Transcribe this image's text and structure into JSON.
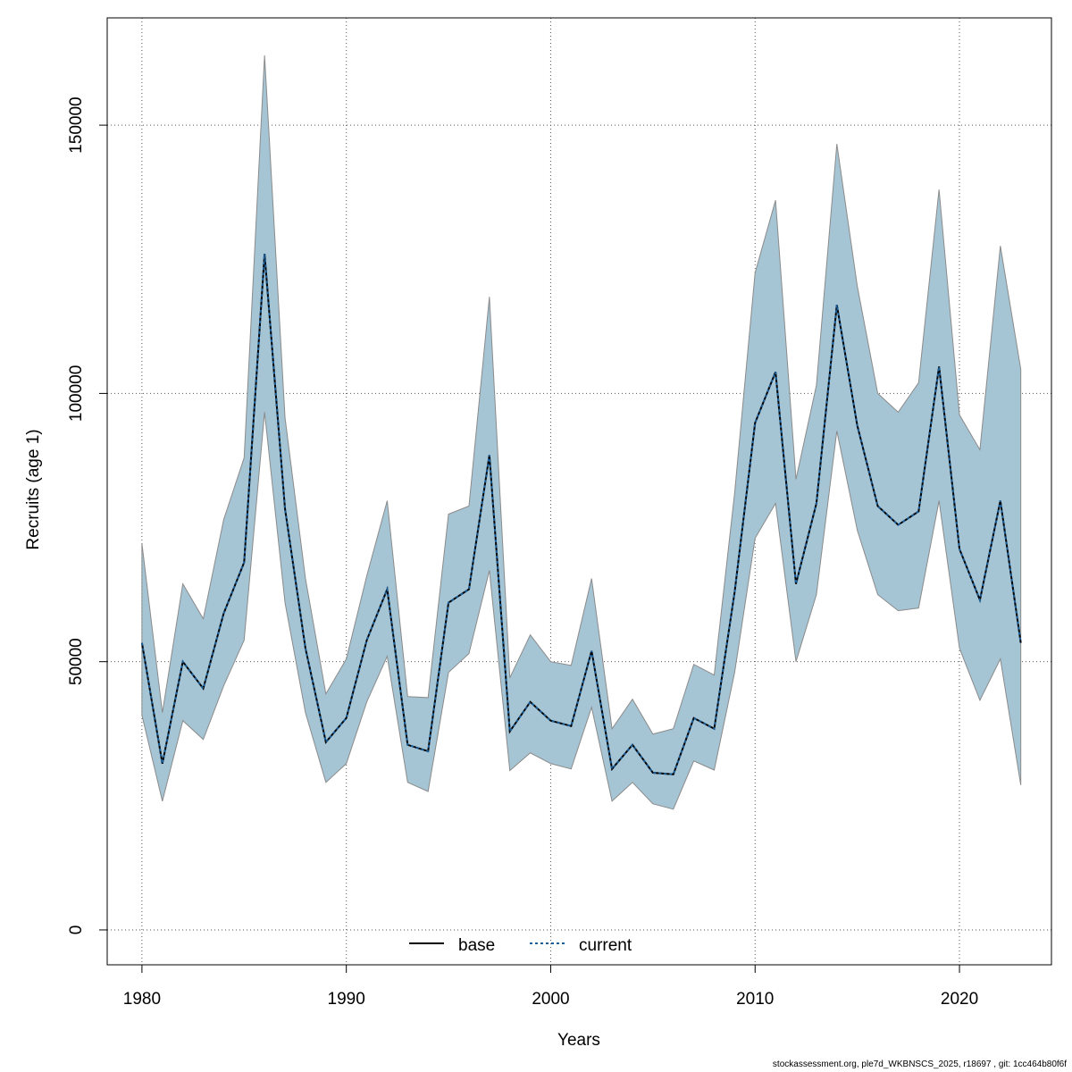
{
  "chart_data": {
    "type": "line",
    "title": "",
    "xlabel": "Years",
    "ylabel": "Recruits (age 1)",
    "xlim": [
      1978.3,
      2024.5
    ],
    "ylim": [
      -6500,
      170000
    ],
    "x_ticks": [
      1980,
      1990,
      2000,
      2010,
      2020
    ],
    "y_ticks": [
      0,
      50000,
      100000,
      150000
    ],
    "grid": true,
    "legend_position": "bottom-center",
    "colors": {
      "band": "#a5c4d4",
      "band_edge": "#8b8b8b",
      "base": "#000000",
      "current": "#1a5e9a"
    },
    "x": [
      1980,
      1981,
      1982,
      1983,
      1984,
      1985,
      1986,
      1987,
      1988,
      1989,
      1990,
      1991,
      1992,
      1993,
      1994,
      1995,
      1996,
      1997,
      1998,
      1999,
      2000,
      2001,
      2002,
      2003,
      2004,
      2005,
      2006,
      2007,
      2008,
      2009,
      2010,
      2011,
      2012,
      2013,
      2014,
      2015,
      2016,
      2017,
      2018,
      2019,
      2020,
      2021,
      2022,
      2023
    ],
    "band_upper": [
      72000,
      40500,
      64500,
      58000,
      76500,
      88000,
      163000,
      95500,
      65500,
      44000,
      50500,
      66000,
      80000,
      43500,
      43300,
      77500,
      79000,
      118000,
      47000,
      55000,
      50000,
      49300,
      65500,
      37500,
      43000,
      36500,
      37500,
      49500,
      47500,
      81500,
      122500,
      136000,
      84000,
      101500,
      146500,
      120000,
      100000,
      96500,
      102000,
      138000,
      96000,
      89500,
      127500,
      104500
    ],
    "band_lower": [
      40000,
      24000,
      39000,
      35500,
      45500,
      54000,
      96500,
      61000,
      40500,
      27500,
      31000,
      42500,
      51000,
      27500,
      25800,
      48000,
      51500,
      67000,
      29700,
      33000,
      31000,
      30000,
      41500,
      24000,
      27500,
      23500,
      22500,
      31500,
      29800,
      48000,
      73000,
      79500,
      50000,
      62500,
      93000,
      74500,
      62500,
      59500,
      60000,
      80000,
      52500,
      42800,
      50500,
      27000
    ],
    "series": [
      {
        "name": "base",
        "style": "solid",
        "values": [
          53500,
          31000,
          50000,
          45000,
          59000,
          68500,
          126000,
          78500,
          52500,
          35000,
          39500,
          54000,
          63500,
          34500,
          33300,
          61000,
          63500,
          88500,
          37000,
          42500,
          39000,
          38000,
          52000,
          30000,
          34500,
          29300,
          29000,
          39500,
          37500,
          63000,
          94500,
          104000,
          64500,
          79500,
          116500,
          94000,
          79000,
          75500,
          78000,
          105000,
          71000,
          61500,
          80000,
          53500
        ]
      },
      {
        "name": "current",
        "style": "dotted",
        "values": [
          53500,
          31000,
          50000,
          45000,
          59000,
          68500,
          126000,
          78500,
          52500,
          35000,
          39500,
          54000,
          63500,
          34500,
          33300,
          61000,
          63500,
          88500,
          37000,
          42500,
          39000,
          38000,
          52000,
          30000,
          34500,
          29300,
          29000,
          39500,
          37500,
          63000,
          94500,
          104000,
          64500,
          79500,
          116500,
          94000,
          79000,
          75500,
          78000,
          105000,
          71000,
          61500,
          80000,
          53500
        ]
      }
    ]
  },
  "footer": "stockassessment.org, ple7d_WKBNSCS_2025, r18697 , git: 1cc464b80f6f"
}
